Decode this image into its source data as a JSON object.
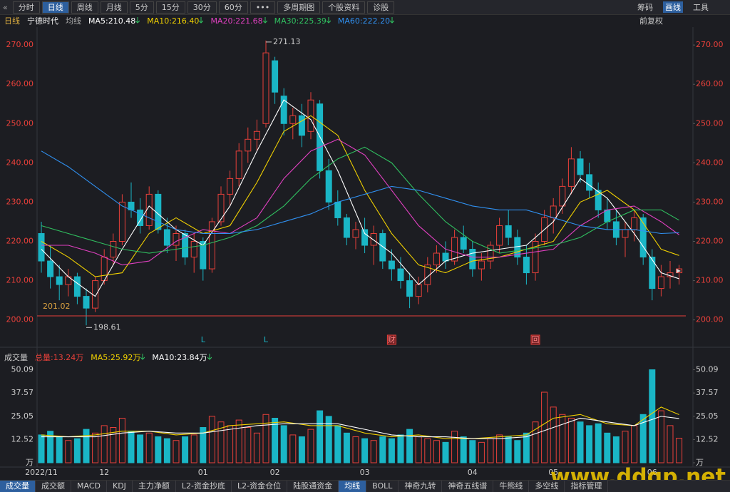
{
  "toolbar": {
    "left": [
      "分时",
      "日线",
      "周线",
      "月线",
      "5分",
      "15分",
      "30分",
      "60分",
      "•••",
      "多周期图",
      "个股资料",
      "诊股"
    ],
    "right": [
      "筹码",
      "画线",
      "工具"
    ]
  },
  "header": {
    "period": "日线",
    "stock": "宁德时代",
    "ma_label": "均线",
    "adjust": "前复权"
  },
  "bottom_tabs": [
    "成交量",
    "成交额",
    "MACD",
    "KDJ",
    "主力净额",
    "L2-资金抄底",
    "L2-资金仓位",
    "陆股通资金",
    "均线",
    "BOLL",
    "神奇九转",
    "神奇五线谱",
    "牛熊线",
    "多空线",
    "指标管理"
  ],
  "watermark": "www.ddgp.net",
  "chart_data": [
    {
      "type": "candlestick",
      "up_color": "#e8403a",
      "down_color": "#1ab6c6",
      "ylim": [
        193.4,
        274.2
      ],
      "yticks": [
        {
          "value": 200,
          "label": "200.00"
        },
        {
          "value": 210,
          "label": "210.00"
        },
        {
          "value": 220,
          "label": "220.00"
        },
        {
          "value": 230,
          "label": "230.00"
        },
        {
          "value": 240,
          "label": "240.00"
        },
        {
          "value": 250,
          "label": "250.00"
        },
        {
          "value": 260,
          "label": "260.00"
        },
        {
          "value": 270,
          "label": "270.00"
        }
      ],
      "grid": false,
      "ohlc": [
        [
          222,
          225,
          212,
          215
        ],
        [
          215,
          219,
          208,
          211
        ],
        [
          211,
          214,
          205,
          209
        ],
        [
          209,
          213,
          206,
          211
        ],
        [
          211,
          212,
          204,
          206
        ],
        [
          206,
          208,
          198.61,
          203
        ],
        [
          203,
          211,
          202,
          210
        ],
        [
          210,
          218,
          209,
          216
        ],
        [
          216,
          222,
          214,
          220
        ],
        [
          220,
          232,
          219,
          230
        ],
        [
          230,
          235,
          226,
          228
        ],
        [
          228,
          231,
          222,
          224
        ],
        [
          224,
          234,
          223,
          232
        ],
        [
          232,
          233,
          222,
          223
        ],
        [
          223,
          226,
          217,
          219
        ],
        [
          219,
          224,
          215,
          222
        ],
        [
          222,
          223,
          214,
          216
        ],
        [
          216,
          222,
          212,
          220
        ],
        [
          220,
          221,
          210,
          213
        ],
        [
          213,
          226,
          212,
          225
        ],
        [
          225,
          234,
          224,
          232
        ],
        [
          232,
          238,
          229,
          236
        ],
        [
          236,
          245,
          234,
          243
        ],
        [
          243,
          249,
          240,
          246
        ],
        [
          246,
          251,
          243,
          248
        ],
        [
          250,
          271.13,
          249,
          268
        ],
        [
          266,
          267,
          255,
          258
        ],
        [
          257,
          259,
          247,
          250
        ],
        [
          250,
          254,
          246,
          252
        ],
        [
          252,
          255,
          244,
          247
        ],
        [
          248,
          258,
          246,
          256
        ],
        [
          255,
          256,
          236,
          238
        ],
        [
          238,
          241,
          228,
          230
        ],
        [
          230,
          233,
          224,
          226
        ],
        [
          226,
          227,
          219,
          221
        ],
        [
          221,
          225,
          218,
          223
        ],
        [
          223,
          226,
          217,
          219
        ],
        [
          219,
          224,
          214,
          222
        ],
        [
          222,
          223,
          213,
          215
        ],
        [
          215,
          218,
          210,
          213
        ],
        [
          213,
          216,
          208,
          210
        ],
        [
          210,
          212,
          203,
          206
        ],
        [
          206,
          211,
          204,
          209
        ],
        [
          209,
          216,
          207,
          214
        ],
        [
          214,
          219,
          212,
          217
        ],
        [
          217,
          220,
          213,
          215
        ],
        [
          215,
          223,
          214,
          221
        ],
        [
          221,
          224,
          217,
          218
        ],
        [
          218,
          220,
          211,
          213
        ],
        [
          213,
          217,
          210,
          215
        ],
        [
          215,
          220,
          213,
          219
        ],
        [
          219,
          226,
          217,
          224
        ],
        [
          224,
          228,
          219,
          221
        ],
        [
          221,
          223,
          214,
          216
        ],
        [
          216,
          219,
          209,
          212
        ],
        [
          212,
          222,
          210,
          220
        ],
        [
          220,
          228,
          219,
          226
        ],
        [
          226,
          231,
          222,
          229
        ],
        [
          229,
          236,
          227,
          234
        ],
        [
          234,
          244,
          232,
          241
        ],
        [
          241,
          243,
          235,
          237
        ],
        [
          237,
          240,
          231,
          233
        ],
        [
          233,
          235,
          226,
          228
        ],
        [
          228,
          231,
          223,
          225
        ],
        [
          225,
          228,
          219,
          221
        ],
        [
          221,
          225,
          216,
          223
        ],
        [
          223,
          228,
          220,
          226
        ],
        [
          226,
          227,
          214,
          216
        ],
        [
          216,
          218,
          205,
          208
        ],
        [
          208,
          214,
          206,
          211
        ],
        [
          211,
          215,
          208,
          212
        ],
        [
          212,
          214,
          209,
          213
        ]
      ],
      "series": [
        {
          "name": "MA5:210.48",
          "color": "#ffffff",
          "x": [
            0,
            3,
            6,
            9,
            12,
            15,
            18,
            21,
            24,
            27,
            30,
            33,
            36,
            39,
            42,
            45,
            48,
            51,
            54,
            57,
            60,
            63,
            66,
            69,
            71
          ],
          "values": [
            218,
            211,
            206,
            218,
            229,
            223,
            219,
            229,
            243,
            256,
            251,
            238,
            222,
            217,
            209,
            215,
            217,
            218,
            219,
            225,
            236,
            231,
            222,
            212,
            210.48
          ]
        },
        {
          "name": "MA10:216.40",
          "color": "#f0d000",
          "x": [
            0,
            3,
            6,
            9,
            12,
            15,
            18,
            21,
            24,
            27,
            30,
            33,
            36,
            39,
            42,
            45,
            48,
            51,
            54,
            57,
            60,
            63,
            66,
            69,
            71
          ],
          "values": [
            220,
            216,
            211,
            212,
            222,
            226,
            222,
            224,
            235,
            248,
            252,
            247,
            233,
            222,
            214,
            212,
            215,
            216,
            218,
            220,
            230,
            233,
            228,
            218,
            216.4
          ]
        },
        {
          "name": "MA20:221.68",
          "color": "#e040c0",
          "x": [
            0,
            3,
            6,
            9,
            12,
            15,
            18,
            21,
            24,
            27,
            30,
            33,
            36,
            39,
            42,
            45,
            48,
            51,
            54,
            57,
            60,
            63,
            66,
            69,
            71
          ],
          "values": [
            219,
            219,
            217,
            214,
            215,
            220,
            223,
            222,
            226,
            236,
            243,
            246,
            242,
            233,
            224,
            218,
            216,
            216,
            217,
            218,
            224,
            228,
            229,
            225,
            221.68
          ]
        },
        {
          "name": "MA30:225.39",
          "color": "#30c060",
          "x": [
            0,
            3,
            6,
            9,
            12,
            15,
            18,
            21,
            24,
            27,
            30,
            33,
            36,
            39,
            42,
            45,
            48,
            51,
            54,
            57,
            60,
            63,
            66,
            69,
            71
          ],
          "values": [
            224,
            222,
            220,
            218,
            217,
            218,
            219,
            221,
            224,
            229,
            236,
            241,
            244,
            240,
            232,
            225,
            220,
            217,
            218,
            219,
            221,
            225,
            228,
            228,
            225.39
          ]
        },
        {
          "name": "MA60:222.20",
          "color": "#3090f0",
          "x": [
            0,
            3,
            6,
            9,
            12,
            15,
            18,
            21,
            24,
            27,
            30,
            33,
            36,
            39,
            42,
            45,
            48,
            51,
            54,
            57,
            60,
            63,
            66,
            69,
            71
          ],
          "values": [
            243,
            239,
            234,
            229,
            226,
            223,
            222,
            222,
            223,
            225,
            227,
            230,
            232,
            234,
            233,
            231,
            229,
            228,
            228,
            226,
            224,
            223,
            223,
            222,
            222.2
          ]
        }
      ],
      "reference_line": 201.02,
      "annotations": [
        {
          "x": 25,
          "value": 271.13
        },
        {
          "x": 5,
          "value": 198.61
        }
      ],
      "markers": [
        {
          "x": 18,
          "label": "L"
        },
        {
          "x": 25,
          "label": "L"
        },
        {
          "x": 39,
          "label": "财"
        },
        {
          "x": 55,
          "label": "回"
        }
      ]
    },
    {
      "type": "volume",
      "title": "成交量",
      "total_label": "总量:13.24万",
      "ylim": [
        0,
        52.6
      ],
      "yticks": [
        {
          "value": 0,
          "label": "万"
        },
        12.52,
        25.05,
        37.57,
        50.09
      ],
      "categories": [
        "2022/11",
        null,
        null,
        null,
        null,
        null,
        null,
        "12",
        null,
        null,
        null,
        null,
        null,
        null,
        null,
        null,
        null,
        null,
        "01",
        null,
        null,
        null,
        null,
        null,
        null,
        null,
        "02",
        null,
        null,
        null,
        null,
        null,
        null,
        null,
        null,
        null,
        "03",
        null,
        null,
        null,
        null,
        null,
        null,
        null,
        null,
        null,
        null,
        null,
        "04",
        null,
        null,
        null,
        null,
        null,
        null,
        null,
        null,
        "05",
        null,
        null,
        null,
        null,
        null,
        null,
        null,
        null,
        null,
        null,
        "06",
        null,
        null,
        null
      ],
      "values": [
        15,
        17,
        14,
        12,
        13,
        18,
        16,
        20,
        19,
        24,
        17,
        15,
        16,
        14,
        13,
        12,
        14,
        15,
        19,
        25,
        22,
        20,
        23,
        19,
        16,
        26,
        24,
        20,
        15,
        14,
        18,
        28,
        25,
        20,
        16,
        14,
        13,
        12,
        14,
        13,
        15,
        18,
        14,
        13,
        12,
        11,
        17,
        14,
        12,
        11,
        13,
        15,
        14,
        12,
        16,
        22,
        38,
        30,
        26,
        24,
        22,
        20,
        21,
        16,
        14,
        17,
        20,
        26,
        50.09,
        28,
        20,
        13.24
      ],
      "series": [
        {
          "name": "MA5:25.92万",
          "color": "#f0d000",
          "x": [
            0,
            3,
            6,
            9,
            12,
            15,
            18,
            21,
            24,
            27,
            30,
            33,
            36,
            39,
            42,
            45,
            48,
            51,
            54,
            57,
            60,
            63,
            66,
            69,
            71
          ],
          "values": [
            15,
            14,
            15,
            17,
            17,
            15,
            16,
            20,
            21,
            22,
            20,
            20,
            16,
            14,
            15,
            13,
            13,
            14,
            15,
            24,
            26,
            21,
            20,
            30,
            25.92
          ]
        },
        {
          "name": "MA10:23.84万",
          "color": "#ffffff",
          "x": [
            0,
            3,
            6,
            9,
            12,
            15,
            18,
            21,
            24,
            27,
            30,
            33,
            36,
            39,
            42,
            45,
            48,
            51,
            54,
            57,
            60,
            63,
            66,
            69,
            71
          ],
          "values": [
            14,
            14,
            14,
            16,
            17,
            16,
            16,
            18,
            20,
            21,
            21,
            21,
            18,
            15,
            14,
            14,
            13,
            13,
            14,
            19,
            24,
            22,
            20,
            25,
            23.84
          ]
        }
      ]
    }
  ]
}
